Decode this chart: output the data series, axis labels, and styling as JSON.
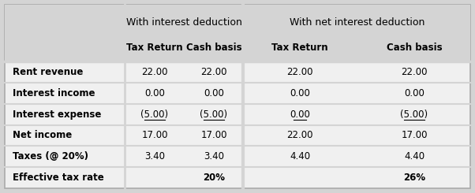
{
  "bg_color": "#d4d4d4",
  "white_color": "#f0f0f0",
  "header1": "With interest deduction",
  "header2": "With net interest deduction",
  "subheaders": [
    "Tax Return",
    "Cash basis",
    "Tax Return",
    "Cash basis"
  ],
  "rows": [
    {
      "label": "Rent revenue",
      "values": [
        "22.00",
        "22.00",
        "22.00",
        "22.00"
      ],
      "underline": [
        false,
        false,
        false,
        false
      ],
      "values_bold": [
        false,
        false,
        false,
        false
      ]
    },
    {
      "label": "Interest income",
      "values": [
        "0.00",
        "0.00",
        "0.00",
        "0.00"
      ],
      "underline": [
        false,
        false,
        false,
        false
      ],
      "values_bold": [
        false,
        false,
        false,
        false
      ]
    },
    {
      "label": "Interest expense",
      "values": [
        "(5.00)",
        "(5.00)",
        "0.00",
        "(5.00)"
      ],
      "underline": [
        true,
        true,
        true,
        true
      ],
      "values_bold": [
        false,
        false,
        false,
        false
      ]
    },
    {
      "label": "Net income",
      "values": [
        "17.00",
        "17.00",
        "22.00",
        "17.00"
      ],
      "underline": [
        false,
        false,
        false,
        false
      ],
      "values_bold": [
        false,
        false,
        false,
        false
      ]
    },
    {
      "label": "Taxes (@ 20%)",
      "values": [
        "3.40",
        "3.40",
        "4.40",
        "4.40"
      ],
      "underline": [
        false,
        false,
        false,
        false
      ],
      "values_bold": [
        false,
        false,
        false,
        false
      ]
    },
    {
      "label": "Effective tax rate",
      "values": [
        "",
        "20%",
        "",
        "26%"
      ],
      "underline": [
        false,
        false,
        false,
        false
      ],
      "values_bold": [
        false,
        true,
        false,
        true
      ]
    }
  ]
}
